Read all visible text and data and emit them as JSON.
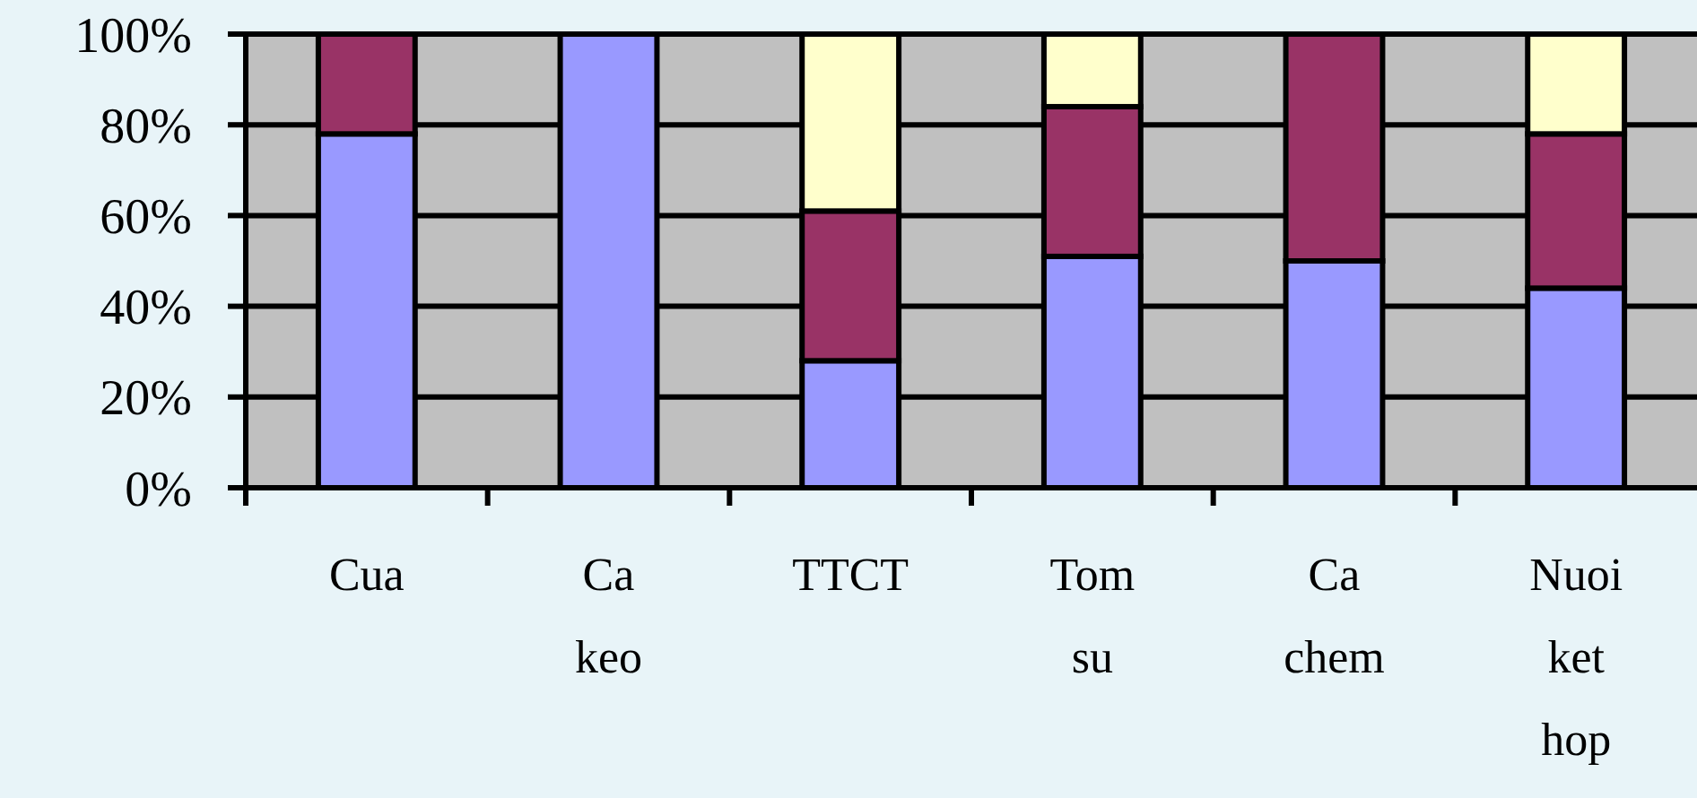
{
  "chart_data": {
    "type": "bar",
    "stacked": true,
    "categories": [
      "Cua",
      "Ca keo",
      "TTCT",
      "Tom su",
      "Ca chem",
      "Nuoi ket hop"
    ],
    "series": [
      {
        "color": "#9999ff",
        "values": [
          78,
          100,
          28,
          51,
          50,
          44
        ]
      },
      {
        "color": "#993366",
        "values": [
          22,
          0,
          33,
          33,
          50,
          34
        ]
      },
      {
        "color": "#ffffcc",
        "values": [
          0,
          0,
          39,
          16,
          0,
          22
        ]
      }
    ],
    "ylim": [
      0,
      100
    ],
    "yticks": [
      {
        "value": 0,
        "label": "0%"
      },
      {
        "value": 20,
        "label": "20%"
      },
      {
        "value": 40,
        "label": "40%"
      },
      {
        "value": 60,
        "label": "60%"
      },
      {
        "value": 80,
        "label": "80%"
      },
      {
        "value": 100,
        "label": "100%"
      }
    ],
    "grid": "y"
  }
}
